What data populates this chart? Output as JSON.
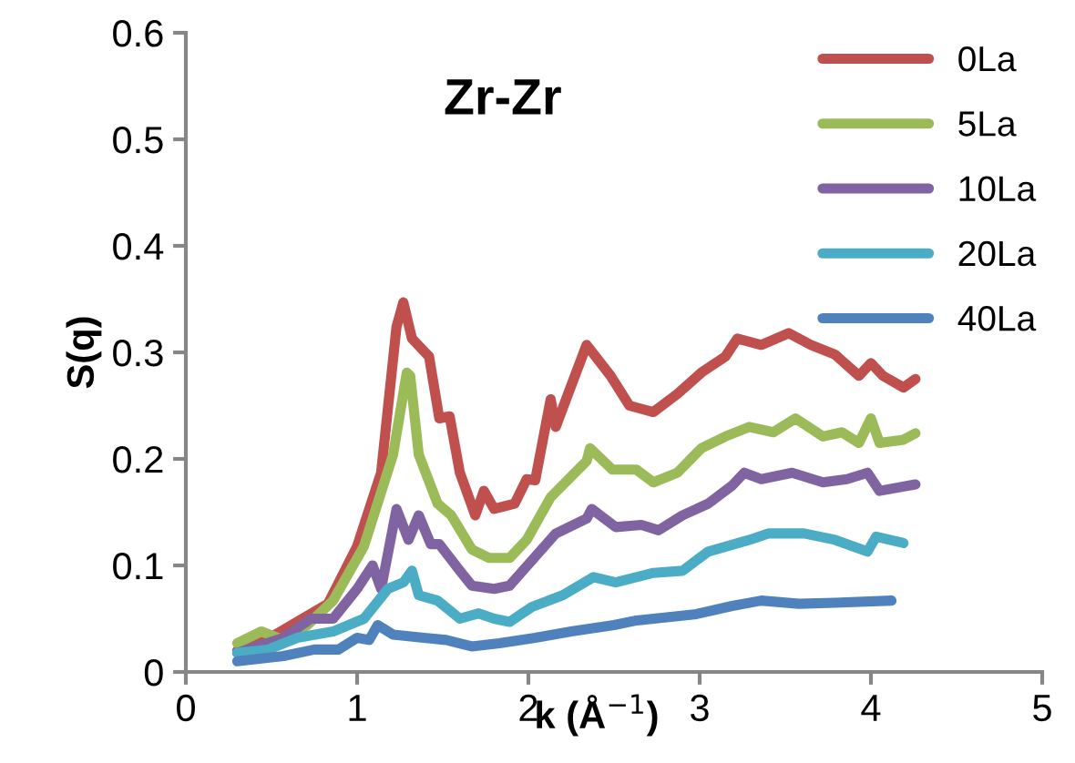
{
  "chart_data": {
    "type": "line",
    "title": "Zr-Zr",
    "xlabel": "k (Å$^{−1}$)",
    "ylabel": "S(q)",
    "xlim": [
      0,
      5
    ],
    "ylim": [
      0,
      0.6
    ],
    "xticks": [
      0,
      1,
      2,
      3,
      4,
      5
    ],
    "yticks": [
      0,
      0.1,
      0.2,
      0.3,
      0.4,
      0.5,
      0.6
    ],
    "grid": false,
    "legend": "top right",
    "marker": "none",
    "line_style": "solid",
    "series": [
      {
        "name": "0La",
        "color": "#c0504d",
        "x": [
          0.3,
          0.47,
          0.83,
          1.0,
          1.14,
          1.23,
          1.27,
          1.32,
          1.42,
          1.48,
          1.54,
          1.6,
          1.69,
          1.74,
          1.8,
          1.92,
          1.99,
          2.04,
          2.13,
          2.16,
          2.22,
          2.34,
          2.48,
          2.59,
          2.73,
          2.87,
          3.01,
          3.15,
          3.22,
          3.36,
          3.52,
          3.65,
          3.79,
          3.93,
          4.0,
          4.07,
          4.19,
          4.26
        ],
        "values": [
          0.02,
          0.03,
          0.064,
          0.118,
          0.187,
          0.324,
          0.347,
          0.313,
          0.296,
          0.238,
          0.24,
          0.187,
          0.147,
          0.17,
          0.153,
          0.158,
          0.181,
          0.18,
          0.256,
          0.23,
          0.256,
          0.307,
          0.278,
          0.25,
          0.244,
          0.261,
          0.281,
          0.296,
          0.313,
          0.307,
          0.318,
          0.307,
          0.298,
          0.278,
          0.29,
          0.278,
          0.267,
          0.275
        ]
      },
      {
        "name": "5La",
        "color": "#9bbb59",
        "x": [
          0.3,
          0.44,
          0.57,
          0.71,
          0.86,
          1.04,
          1.21,
          1.29,
          1.31,
          1.36,
          1.47,
          1.55,
          1.67,
          1.77,
          1.89,
          1.99,
          2.13,
          2.34,
          2.36,
          2.49,
          2.63,
          2.73,
          2.87,
          3.01,
          3.15,
          3.29,
          3.43,
          3.56,
          3.72,
          3.83,
          3.93,
          4.0,
          4.05,
          4.19,
          4.26
        ],
        "values": [
          0.027,
          0.038,
          0.03,
          0.044,
          0.067,
          0.118,
          0.204,
          0.281,
          0.278,
          0.204,
          0.158,
          0.147,
          0.115,
          0.107,
          0.107,
          0.124,
          0.164,
          0.198,
          0.21,
          0.19,
          0.19,
          0.178,
          0.187,
          0.21,
          0.221,
          0.23,
          0.225,
          0.238,
          0.221,
          0.225,
          0.215,
          0.238,
          0.215,
          0.218,
          0.224
        ]
      },
      {
        "name": "10La",
        "color": "#8064a2",
        "x": [
          0.3,
          0.57,
          0.73,
          0.86,
          1.0,
          1.09,
          1.14,
          1.23,
          1.3,
          1.36,
          1.43,
          1.48,
          1.6,
          1.67,
          1.8,
          1.89,
          2.0,
          2.16,
          2.34,
          2.37,
          2.51,
          2.66,
          2.76,
          2.9,
          3.05,
          3.19,
          3.26,
          3.36,
          3.54,
          3.72,
          3.86,
          3.98,
          4.05,
          4.26
        ],
        "values": [
          0.018,
          0.032,
          0.05,
          0.05,
          0.078,
          0.1,
          0.078,
          0.153,
          0.124,
          0.147,
          0.12,
          0.12,
          0.095,
          0.081,
          0.078,
          0.081,
          0.101,
          0.13,
          0.144,
          0.153,
          0.136,
          0.138,
          0.133,
          0.147,
          0.158,
          0.175,
          0.187,
          0.181,
          0.187,
          0.178,
          0.181,
          0.187,
          0.17,
          0.176
        ]
      },
      {
        "name": "20La",
        "color": "#4bacc6",
        "x": [
          0.3,
          0.48,
          0.65,
          0.86,
          1.04,
          1.18,
          1.27,
          1.32,
          1.36,
          1.47,
          1.6,
          1.71,
          1.8,
          1.89,
          2.02,
          2.2,
          2.38,
          2.51,
          2.73,
          2.9,
          3.05,
          3.29,
          3.4,
          3.61,
          3.79,
          3.98,
          4.03,
          4.19
        ],
        "values": [
          0.018,
          0.021,
          0.032,
          0.038,
          0.05,
          0.078,
          0.084,
          0.095,
          0.072,
          0.067,
          0.05,
          0.055,
          0.05,
          0.047,
          0.061,
          0.072,
          0.089,
          0.084,
          0.093,
          0.095,
          0.113,
          0.124,
          0.13,
          0.13,
          0.124,
          0.113,
          0.127,
          0.121
        ]
      },
      {
        "name": "40La",
        "color": "#4f81bd",
        "x": [
          0.3,
          0.57,
          0.75,
          0.89,
          1.0,
          1.07,
          1.12,
          1.21,
          1.39,
          1.52,
          1.67,
          1.83,
          2.04,
          2.25,
          2.5,
          2.62,
          2.97,
          3.19,
          3.36,
          3.58,
          3.79,
          4.12
        ],
        "values": [
          0.01,
          0.015,
          0.021,
          0.021,
          0.032,
          0.03,
          0.044,
          0.035,
          0.032,
          0.03,
          0.024,
          0.027,
          0.032,
          0.038,
          0.044,
          0.048,
          0.054,
          0.062,
          0.067,
          0.064,
          0.065,
          0.067
        ]
      }
    ]
  }
}
